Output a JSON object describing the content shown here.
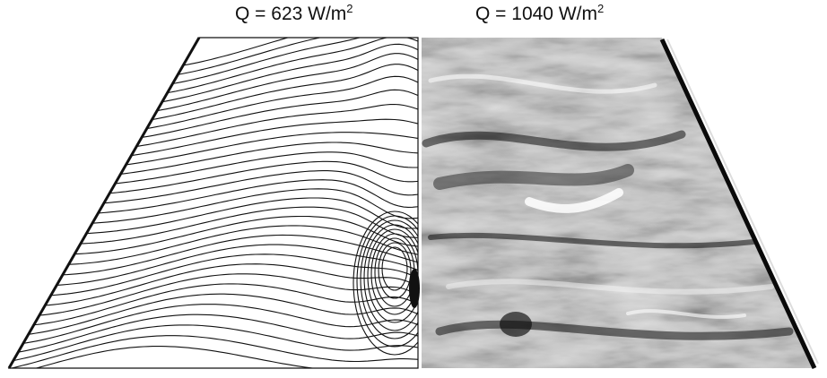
{
  "figure": {
    "left_panel": {
      "label_prefix": "Q = 623 W/m",
      "label_exp": "2",
      "panel_kind": "streamline-contour-plot"
    },
    "right_panel": {
      "label_prefix": "Q = 1040 W/m",
      "label_exp": "2",
      "panel_kind": "flow-visualization-photograph"
    },
    "colors": {
      "line": "#111111",
      "background": "#ffffff"
    }
  }
}
